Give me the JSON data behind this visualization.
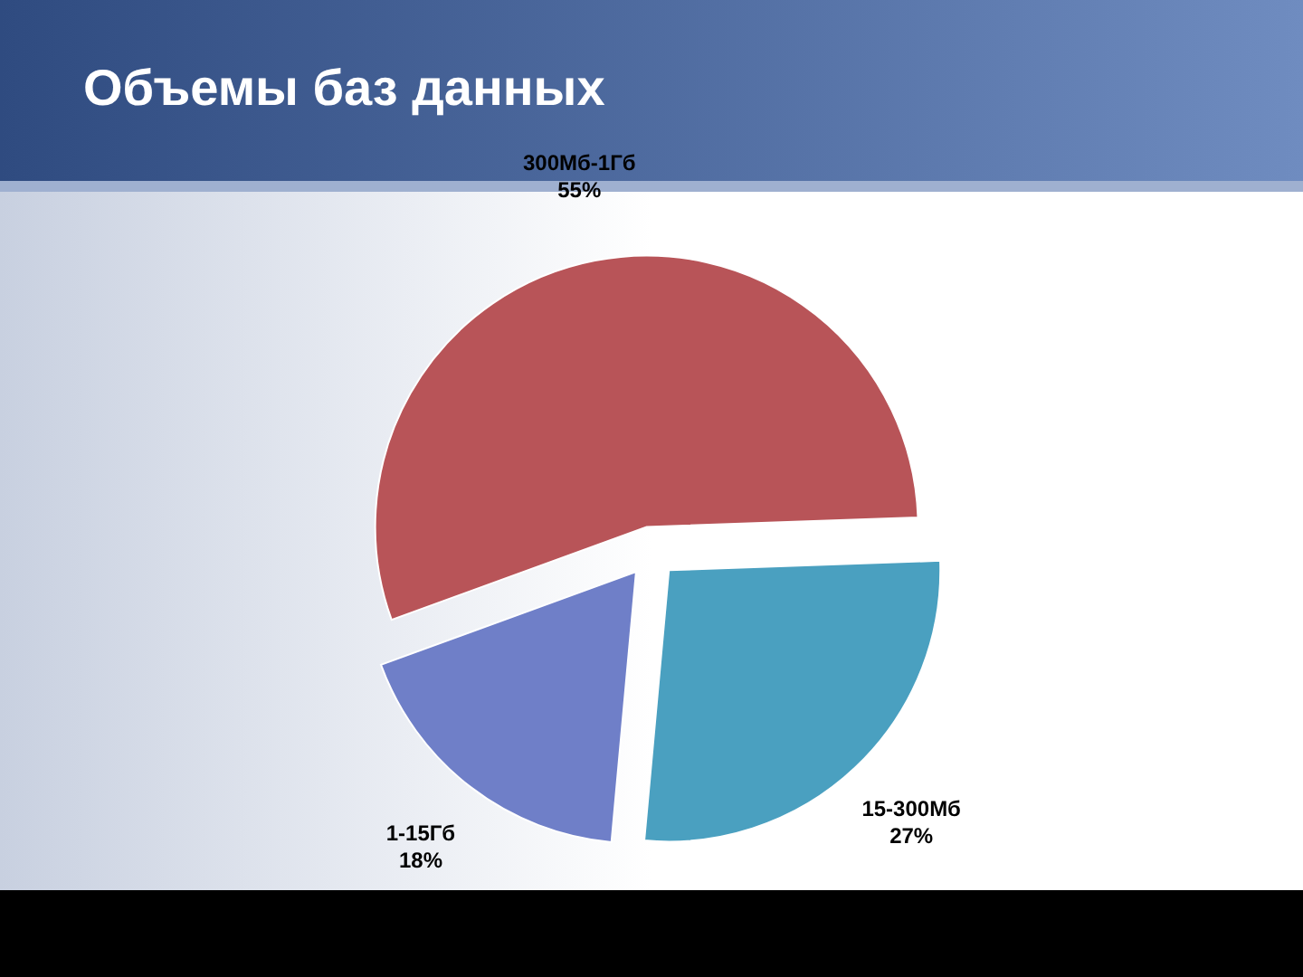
{
  "chart_data": {
    "type": "pie",
    "title": "Объемы баз данных",
    "categories": [
      "300Мб-1Гб",
      "15-300Мб",
      "1-15Гб"
    ],
    "values": [
      55,
      27,
      18
    ],
    "colors": [
      "#b85458",
      "#4aa0c0",
      "#6f7fc8"
    ],
    "value_labels": [
      "55%",
      "27%",
      "18%"
    ]
  }
}
